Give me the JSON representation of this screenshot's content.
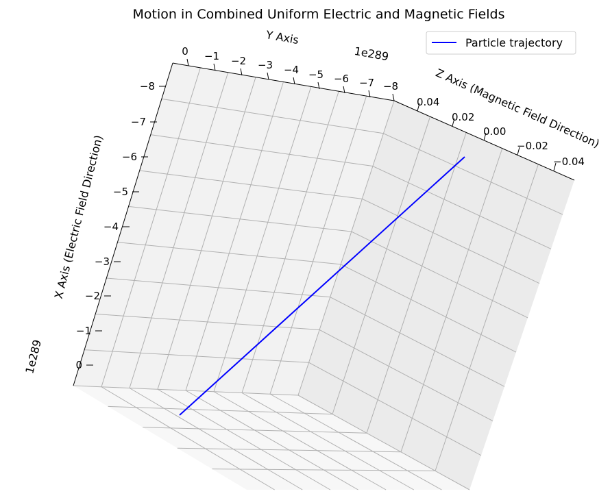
{
  "chart_data": {
    "type": "line",
    "title": "Motion in Combined Uniform Electric and Magnetic Fields",
    "x_axis": {
      "label": "X Axis (Electric Field Direction)",
      "ticks": [
        "−8",
        "−7",
        "−6",
        "−5",
        "−4",
        "−3",
        "−2",
        "−1",
        "0"
      ],
      "offset_text": "1e289"
    },
    "y_axis": {
      "label": "Y Axis",
      "ticks": [
        "0",
        "−1",
        "−2",
        "−3",
        "−4",
        "−5",
        "−6",
        "−7",
        "−8"
      ],
      "offset_text": "1e289"
    },
    "z_axis": {
      "label": "Z Axis (Magnetic Field Direction)",
      "ticks": [
        "0.04",
        "0.02",
        "0.00",
        "−0.02",
        "−0.04"
      ]
    },
    "series": [
      {
        "name": "Particle trajectory",
        "color": "#0000ff",
        "x": [
          0,
          -6.2
        ],
        "y": [
          0,
          -6.5
        ],
        "z": [
          0,
          0
        ]
      }
    ],
    "legend": {
      "position": "top-right",
      "entries": [
        "Particle trajectory"
      ]
    },
    "grid": true
  }
}
